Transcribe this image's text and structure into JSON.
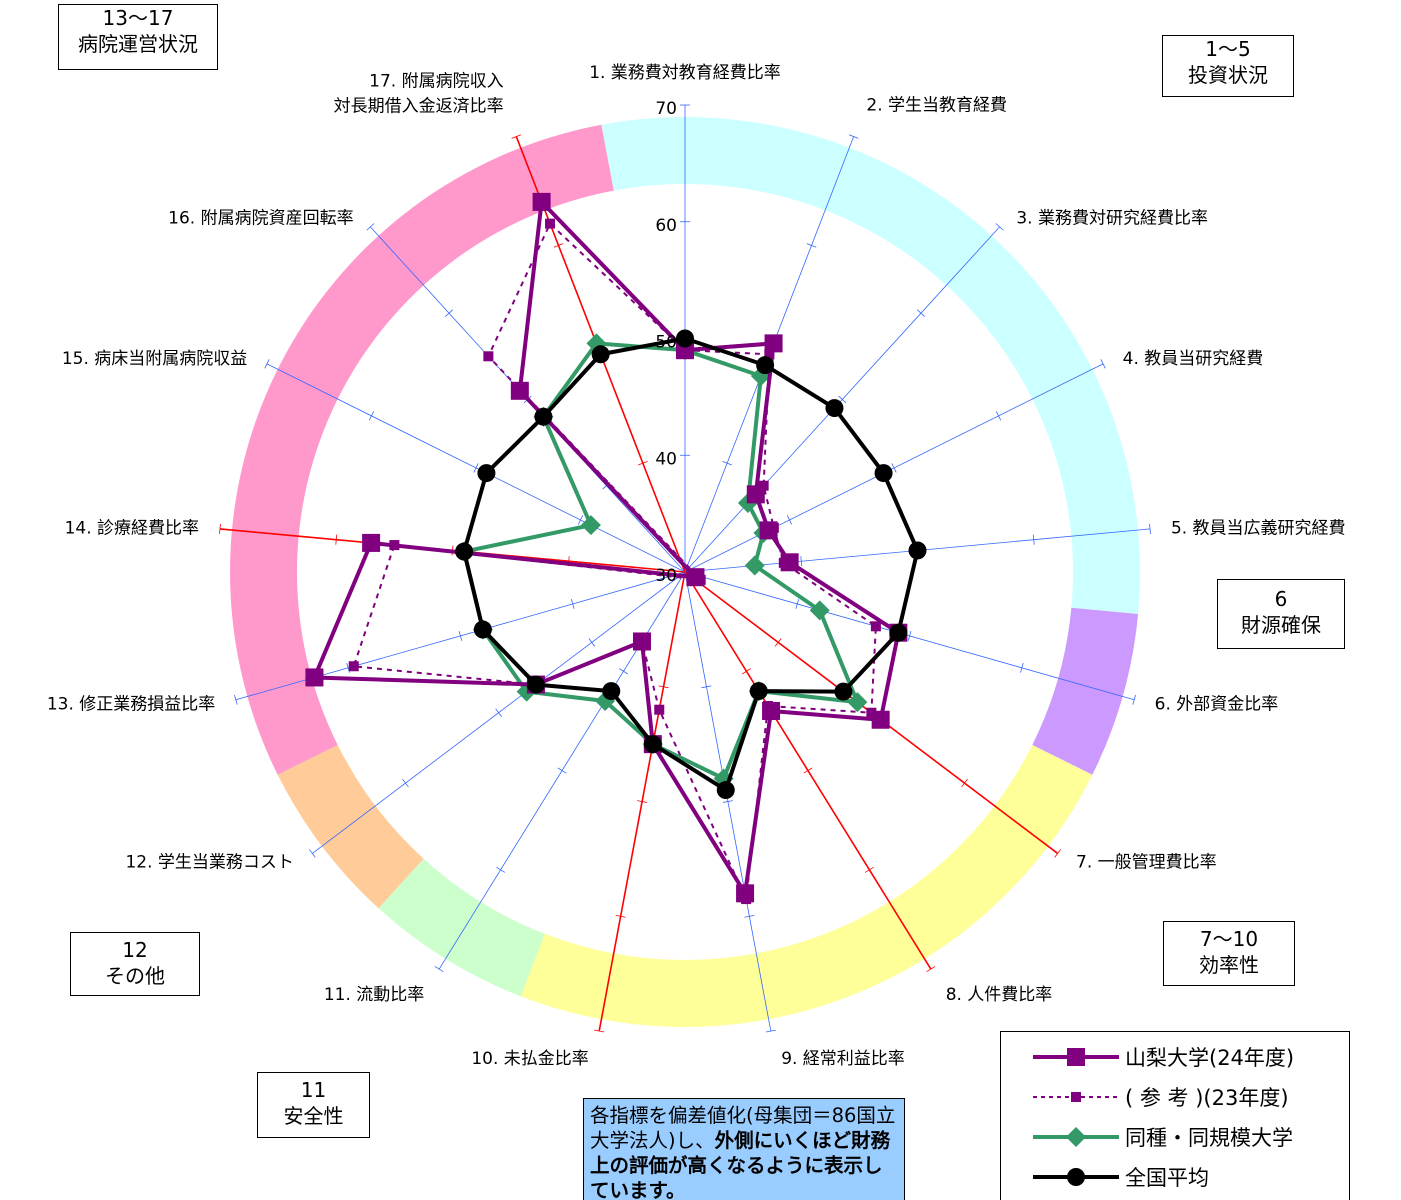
{
  "chart_data": {
    "type": "radar",
    "r_min": 30,
    "r_max": 70,
    "tick_values": [
      30,
      40,
      50,
      60,
      70
    ],
    "axes": [
      "1. 業務費対教育経費比率",
      "2. 学生当教育経費",
      "3. 業務費対研究経費比率",
      "4. 教員当研究経費",
      "5. 教員当広義研究経費",
      "6. 外部資金比率",
      "7. 一般管理費比率",
      "8. 人件費比率",
      "9. 経常利益比率",
      "10. 未払金比率",
      "11. 流動比率",
      "12. 学生当業務コスト",
      "13. 修正業務損益比率",
      "14. 診療経費比率",
      "15. 病床当附属病院収益",
      "16. 附属病院資産回転率",
      "17. 附属病院収入\n対長期借入金返済比率"
    ],
    "series": [
      {
        "name": "山梨大学(24年度)",
        "color": "#800080",
        "style": "solid-square",
        "values": [
          49,
          51,
          39,
          38,
          39,
          49,
          51,
          44,
          58,
          45,
          37,
          46,
          63,
          57,
          29,
          51,
          64
        ]
      },
      {
        "name": "( 参 考 )(23年度)",
        "color": "#800080",
        "style": "dashed-small-square",
        "values": [
          49,
          50,
          40,
          38.5,
          38.5,
          47,
          50,
          43.5,
          58.5,
          42,
          37,
          46,
          59.5,
          55,
          28.5,
          55,
          62
        ]
      },
      {
        "name": "同種・同規模大学",
        "color": "#339966",
        "style": "solid-diamond",
        "values": [
          49,
          48,
          38,
          37.5,
          36,
          42,
          48.5,
          42,
          48,
          45,
          43,
          47,
          48,
          49,
          39,
          48,
          51
        ]
      },
      {
        "name": "全国平均",
        "color": "#000000",
        "style": "solid-circle",
        "values": [
          50,
          49,
          49,
          49,
          50,
          49,
          47,
          42,
          49,
          45,
          42,
          46,
          48,
          49,
          49,
          48,
          50
        ]
      }
    ],
    "category_bands": [
      {
        "axes": [
          1,
          5
        ],
        "color": "#ccffff",
        "label_top": "1〜5",
        "label_bottom": "投資状況"
      },
      {
        "axes": [
          6,
          6
        ],
        "color": "#cc99ff",
        "label_top": "6",
        "label_bottom": "財源確保"
      },
      {
        "axes": [
          7,
          10
        ],
        "color": "#ffff99",
        "label_top": "7〜10",
        "label_bottom": "効率性"
      },
      {
        "axes": [
          11,
          11
        ],
        "color": "#ccffcc",
        "label_top": "11",
        "label_bottom": "安全性"
      },
      {
        "axes": [
          12,
          12
        ],
        "color": "#ffcc99",
        "label_top": "12",
        "label_bottom": "その他"
      },
      {
        "axes": [
          13,
          17
        ],
        "color": "#ff99cc",
        "label_top": "13〜17",
        "label_bottom": "病院運営状況"
      }
    ],
    "highlight_axes": [
      7,
      8,
      10,
      14,
      17
    ],
    "highlight_color": "#ff0000",
    "axis_color": "#3366ff"
  },
  "note": {
    "text_before": "各指標を偏差値化(母集団＝86国立大学法人)し、",
    "text_bold": "外側にいくほど財務上の評価が高くなるように表示しています。"
  }
}
